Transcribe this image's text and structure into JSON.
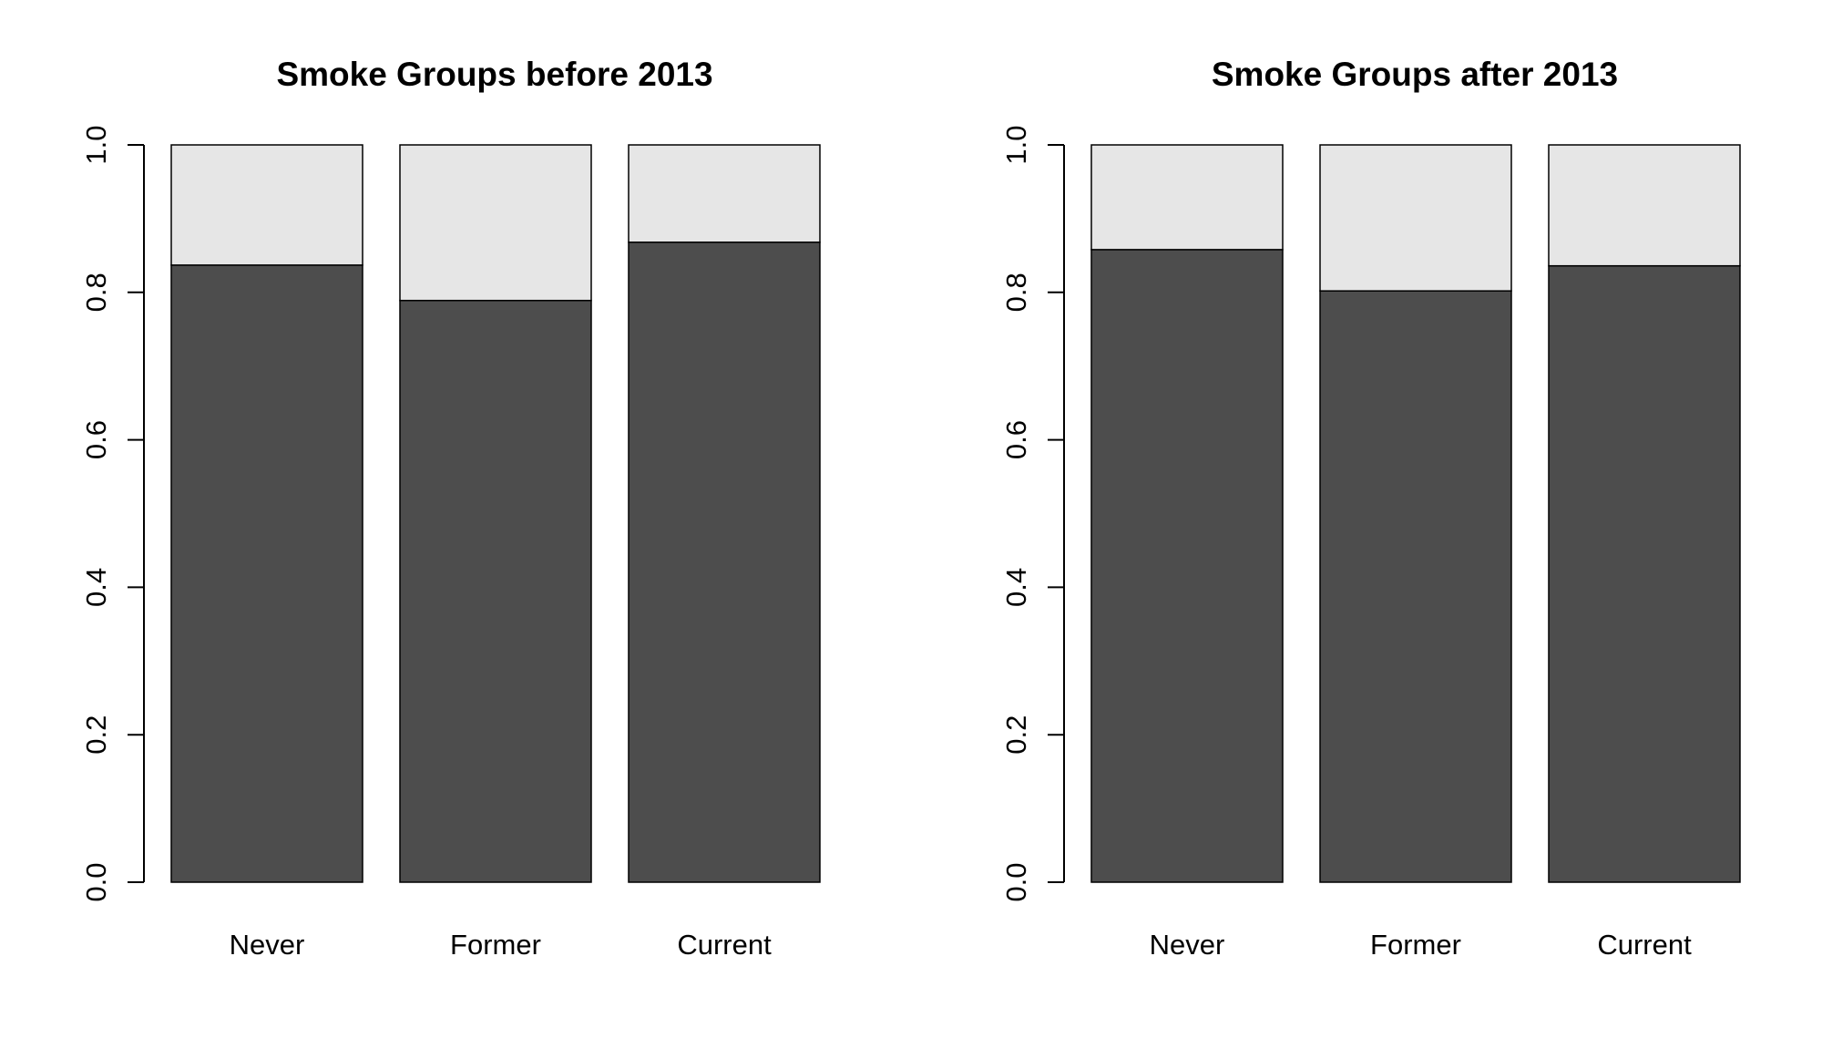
{
  "chart_data": [
    {
      "type": "bar",
      "stacked": true,
      "title": "Smoke Groups before 2013",
      "xlabel": "",
      "ylabel": "",
      "categories": [
        "Never",
        "Former",
        "Current"
      ],
      "series": [
        {
          "values": [
            0.837,
            0.789,
            0.868
          ],
          "color": "#4d4d4d"
        },
        {
          "values": [
            0.163,
            0.211,
            0.132
          ],
          "color": "#e6e6e6"
        }
      ],
      "ylim": [
        0,
        1
      ],
      "yticks": [
        "0.0",
        "0.2",
        "0.4",
        "0.6",
        "0.8",
        "1.0"
      ],
      "grid": false
    },
    {
      "type": "bar",
      "stacked": true,
      "title": "Smoke Groups after 2013",
      "xlabel": "",
      "ylabel": "",
      "categories": [
        "Never",
        "Former",
        "Current"
      ],
      "series": [
        {
          "values": [
            0.858,
            0.802,
            0.836
          ],
          "color": "#4d4d4d"
        },
        {
          "values": [
            0.142,
            0.198,
            0.164
          ],
          "color": "#e6e6e6"
        }
      ],
      "ylim": [
        0,
        1
      ],
      "yticks": [
        "0.0",
        "0.2",
        "0.4",
        "0.6",
        "0.8",
        "1.0"
      ],
      "grid": false
    }
  ]
}
